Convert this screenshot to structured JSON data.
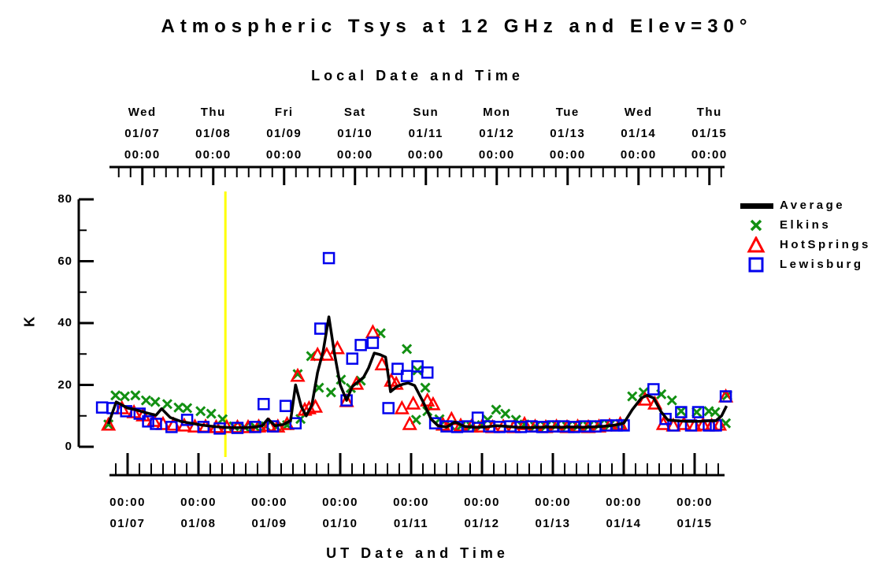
{
  "chart_data": {
    "type": "scatter",
    "title": "Atmospheric Tsys at 12 GHz and Elev=30°",
    "ylabel": "K",
    "y_axis": {
      "range": [
        0,
        80
      ],
      "ticks": [
        0,
        20,
        40,
        60,
        80
      ],
      "minor_ticks": [
        10,
        30,
        50,
        70
      ]
    },
    "time_unit": "days since 01/07 00:00 UT",
    "t_range": [
      -0.4,
      8.5
    ],
    "top_axis": {
      "label": "Local Date and Time",
      "offset_hours": 5,
      "minor_tick_hours": 4,
      "ticks": [
        {
          "day": "Wed",
          "date": "01/07",
          "time": "00:00"
        },
        {
          "day": "Thu",
          "date": "01/08",
          "time": "00:00"
        },
        {
          "day": "Fri",
          "date": "01/09",
          "time": "00:00"
        },
        {
          "day": "Sat",
          "date": "01/10",
          "time": "00:00"
        },
        {
          "day": "Sun",
          "date": "01/11",
          "time": "00:00"
        },
        {
          "day": "Mon",
          "date": "01/12",
          "time": "00:00"
        },
        {
          "day": "Tue",
          "date": "01/13",
          "time": "00:00"
        },
        {
          "day": "Wed",
          "date": "01/14",
          "time": "00:00"
        },
        {
          "day": "Thu",
          "date": "01/15",
          "time": "00:00"
        }
      ]
    },
    "bottom_axis": {
      "label": "UT Date and Time",
      "minor_tick_hours": 4,
      "ticks": [
        {
          "time": "00:00",
          "date": "01/07"
        },
        {
          "time": "00:00",
          "date": "01/08"
        },
        {
          "time": "00:00",
          "date": "01/09"
        },
        {
          "time": "00:00",
          "date": "01/10"
        },
        {
          "time": "00:00",
          "date": "01/11"
        },
        {
          "time": "00:00",
          "date": "01/12"
        },
        {
          "time": "00:00",
          "date": "01/13"
        },
        {
          "time": "00:00",
          "date": "01/14"
        },
        {
          "time": "00:00",
          "date": "01/15"
        }
      ]
    },
    "highlight_line": {
      "color": "#FFFF00",
      "t_days": 1.38
    },
    "legend_position": "right-top",
    "series": [
      {
        "name": "Average",
        "type": "line",
        "color": "#000000",
        "points": [
          [
            -0.27,
            7.4
          ],
          [
            -0.16,
            14.5
          ],
          [
            0.0,
            12.5
          ],
          [
            0.11,
            12
          ],
          [
            0.26,
            11
          ],
          [
            0.4,
            10.2
          ],
          [
            0.48,
            12.3
          ],
          [
            0.6,
            9.5
          ],
          [
            0.75,
            8.2
          ],
          [
            0.9,
            7.6
          ],
          [
            1.05,
            7
          ],
          [
            1.2,
            6.6
          ],
          [
            1.35,
            6.3
          ],
          [
            1.5,
            6.2
          ],
          [
            1.65,
            6.2
          ],
          [
            1.8,
            6.4
          ],
          [
            1.9,
            6.8
          ],
          [
            1.98,
            9
          ],
          [
            2.08,
            6.8
          ],
          [
            2.2,
            7.2
          ],
          [
            2.3,
            8.5
          ],
          [
            2.37,
            20
          ],
          [
            2.45,
            13
          ],
          [
            2.52,
            10
          ],
          [
            2.6,
            13.5
          ],
          [
            2.68,
            24
          ],
          [
            2.76,
            31
          ],
          [
            2.84,
            42
          ],
          [
            2.92,
            30
          ],
          [
            3.0,
            20
          ],
          [
            3.09,
            15
          ],
          [
            3.17,
            19.5
          ],
          [
            3.25,
            21
          ],
          [
            3.33,
            22.5
          ],
          [
            3.4,
            25.5
          ],
          [
            3.48,
            30.3
          ],
          [
            3.56,
            29.8
          ],
          [
            3.64,
            29
          ],
          [
            3.71,
            17.8
          ],
          [
            3.8,
            19.5
          ],
          [
            3.88,
            20.2
          ],
          [
            3.96,
            20.6
          ],
          [
            4.05,
            19.8
          ],
          [
            4.17,
            14.5
          ],
          [
            4.28,
            9
          ],
          [
            4.38,
            6.8
          ],
          [
            4.5,
            6.4
          ],
          [
            4.62,
            8
          ],
          [
            4.75,
            6.6
          ],
          [
            4.9,
            6.3
          ],
          [
            5.05,
            6.4
          ],
          [
            5.2,
            6.8
          ],
          [
            5.35,
            6.6
          ],
          [
            5.5,
            6.3
          ],
          [
            5.65,
            6.2
          ],
          [
            5.8,
            6.3
          ],
          [
            5.95,
            6.4
          ],
          [
            6.1,
            6.3
          ],
          [
            6.25,
            6.4
          ],
          [
            6.4,
            6.3
          ],
          [
            6.55,
            6.4
          ],
          [
            6.7,
            6.6
          ],
          [
            6.85,
            6.9
          ],
          [
            7.0,
            7.6
          ],
          [
            7.12,
            12
          ],
          [
            7.25,
            15.8
          ],
          [
            7.33,
            16.6
          ],
          [
            7.42,
            15.8
          ],
          [
            7.53,
            11.2
          ],
          [
            7.62,
            8.7
          ],
          [
            7.75,
            8.4
          ],
          [
            7.9,
            8.2
          ],
          [
            8.05,
            8.2
          ],
          [
            8.2,
            8.4
          ],
          [
            8.3,
            8.4
          ],
          [
            8.38,
            10
          ],
          [
            8.45,
            13.2
          ]
        ]
      },
      {
        "name": "Elkins",
        "type": "scatter",
        "marker": "x",
        "color": "#129012",
        "points": [
          [
            -0.27,
            7.2
          ],
          [
            -0.17,
            16.6
          ],
          [
            -0.04,
            16.3
          ],
          [
            0.11,
            16.6
          ],
          [
            0.26,
            15
          ],
          [
            0.39,
            14.5
          ],
          [
            0.56,
            13.8
          ],
          [
            0.72,
            12.7
          ],
          [
            0.84,
            12.5
          ],
          [
            1.03,
            11.5
          ],
          [
            1.18,
            10.7
          ],
          [
            1.34,
            8.9
          ],
          [
            1.5,
            6.6
          ],
          [
            1.65,
            6.4
          ],
          [
            1.8,
            6.4
          ],
          [
            1.95,
            6.6
          ],
          [
            2.1,
            6.4
          ],
          [
            2.25,
            7
          ],
          [
            2.4,
            23.5
          ],
          [
            2.44,
            9
          ],
          [
            2.59,
            29.3
          ],
          [
            2.7,
            19.1
          ],
          [
            2.87,
            17.6
          ],
          [
            3.01,
            21.7
          ],
          [
            3.15,
            19
          ],
          [
            3.29,
            21.4
          ],
          [
            3.57,
            36.7
          ],
          [
            3.94,
            31.6
          ],
          [
            4.07,
            8.7
          ],
          [
            4.09,
            24.7
          ],
          [
            4.2,
            19.1
          ],
          [
            4.23,
            11.5
          ],
          [
            4.4,
            8.9
          ],
          [
            4.55,
            7
          ],
          [
            4.7,
            6.6
          ],
          [
            4.85,
            6.6
          ],
          [
            5.0,
            7
          ],
          [
            5.08,
            8.7
          ],
          [
            5.2,
            12
          ],
          [
            5.33,
            10.7
          ],
          [
            5.48,
            8.7
          ],
          [
            5.6,
            7.2
          ],
          [
            5.75,
            6.6
          ],
          [
            5.9,
            6.6
          ],
          [
            6.05,
            7
          ],
          [
            6.2,
            6.6
          ],
          [
            6.35,
            6.6
          ],
          [
            6.5,
            6.6
          ],
          [
            6.65,
            7
          ],
          [
            6.8,
            7
          ],
          [
            6.95,
            7.4
          ],
          [
            7.12,
            16.3
          ],
          [
            7.28,
            17.6
          ],
          [
            7.53,
            17
          ],
          [
            7.68,
            15
          ],
          [
            7.81,
            11.5
          ],
          [
            8.03,
            11.2
          ],
          [
            8.2,
            11.5
          ],
          [
            8.29,
            11.2
          ],
          [
            8.44,
            7.6
          ],
          [
            8.46,
            16.6
          ]
        ]
      },
      {
        "name": "HotSprings",
        "type": "scatter",
        "marker": "triangle",
        "color": "#FF0000",
        "points": [
          [
            -0.27,
            7.2
          ],
          [
            -0.08,
            12.5
          ],
          [
            0.09,
            11.2
          ],
          [
            0.22,
            10.2
          ],
          [
            0.37,
            8.4
          ],
          [
            0.5,
            7.4
          ],
          [
            0.65,
            7.2
          ],
          [
            0.8,
            6.9
          ],
          [
            0.95,
            6.6
          ],
          [
            1.1,
            6.6
          ],
          [
            1.25,
            6.4
          ],
          [
            1.4,
            6.4
          ],
          [
            1.55,
            6.4
          ],
          [
            1.7,
            6.4
          ],
          [
            1.85,
            6.6
          ],
          [
            2.0,
            6.9
          ],
          [
            2.12,
            6.6
          ],
          [
            2.25,
            7.4
          ],
          [
            2.4,
            23
          ],
          [
            2.5,
            12
          ],
          [
            2.56,
            12.5
          ],
          [
            2.65,
            13
          ],
          [
            2.68,
            29.8
          ],
          [
            2.81,
            29.8
          ],
          [
            2.96,
            31.9
          ],
          [
            3.09,
            14.8
          ],
          [
            3.23,
            20.4
          ],
          [
            3.46,
            37.1
          ],
          [
            3.59,
            26.7
          ],
          [
            3.72,
            21.4
          ],
          [
            3.79,
            20.4
          ],
          [
            3.87,
            12.5
          ],
          [
            3.98,
            7.4
          ],
          [
            4.03,
            14
          ],
          [
            4.23,
            15
          ],
          [
            4.31,
            13.8
          ],
          [
            4.45,
            7.2
          ],
          [
            4.57,
            9
          ],
          [
            4.7,
            6.9
          ],
          [
            4.85,
            6.6
          ],
          [
            5.0,
            6.6
          ],
          [
            5.15,
            6.4
          ],
          [
            5.3,
            6.6
          ],
          [
            5.45,
            6.4
          ],
          [
            5.6,
            7.4
          ],
          [
            5.75,
            6.6
          ],
          [
            5.9,
            6.4
          ],
          [
            6.05,
            6.6
          ],
          [
            6.2,
            6.4
          ],
          [
            6.35,
            6.6
          ],
          [
            6.5,
            6.4
          ],
          [
            6.65,
            6.6
          ],
          [
            6.8,
            6.9
          ],
          [
            6.95,
            7.4
          ],
          [
            7.3,
            15.3
          ],
          [
            7.44,
            14
          ],
          [
            7.56,
            7.4
          ],
          [
            7.7,
            6.9
          ],
          [
            7.85,
            7.4
          ],
          [
            8.0,
            6.9
          ],
          [
            8.12,
            7.2
          ],
          [
            8.24,
            6.9
          ],
          [
            8.35,
            7.2
          ],
          [
            8.44,
            16.3
          ]
        ]
      },
      {
        "name": "Lewisburg",
        "type": "scatter",
        "marker": "square",
        "color": "#0000EE",
        "points": [
          [
            -0.36,
            12.7
          ],
          [
            -0.21,
            12.5
          ],
          [
            -0.02,
            11.5
          ],
          [
            0.17,
            10.7
          ],
          [
            0.29,
            8.2
          ],
          [
            0.4,
            7.4
          ],
          [
            0.62,
            6.4
          ],
          [
            0.84,
            8.7
          ],
          [
            1.07,
            6.4
          ],
          [
            1.3,
            5.9
          ],
          [
            1.55,
            6.1
          ],
          [
            1.8,
            6.4
          ],
          [
            1.92,
            13.8
          ],
          [
            2.05,
            6.6
          ],
          [
            2.23,
            13.2
          ],
          [
            2.37,
            7.6
          ],
          [
            2.72,
            38.2
          ],
          [
            2.84,
            61
          ],
          [
            3.09,
            15
          ],
          [
            3.17,
            28.5
          ],
          [
            3.29,
            32.9
          ],
          [
            3.46,
            33.6
          ],
          [
            3.68,
            12.5
          ],
          [
            3.81,
            25.2
          ],
          [
            3.94,
            22.9
          ],
          [
            4.09,
            26
          ],
          [
            4.23,
            24
          ],
          [
            4.34,
            7.6
          ],
          [
            4.5,
            6.6
          ],
          [
            4.65,
            6.4
          ],
          [
            4.8,
            6.6
          ],
          [
            4.94,
            9.4
          ],
          [
            5.1,
            6.6
          ],
          [
            5.25,
            6.4
          ],
          [
            5.4,
            6.6
          ],
          [
            5.55,
            6.4
          ],
          [
            5.7,
            6.6
          ],
          [
            5.85,
            6.4
          ],
          [
            6.0,
            6.6
          ],
          [
            6.15,
            6.6
          ],
          [
            6.3,
            6.4
          ],
          [
            6.45,
            6.6
          ],
          [
            6.6,
            6.6
          ],
          [
            6.75,
            6.9
          ],
          [
            6.9,
            6.9
          ],
          [
            7.0,
            6.9
          ],
          [
            7.42,
            18.6
          ],
          [
            7.59,
            9
          ],
          [
            7.7,
            6.9
          ],
          [
            7.81,
            11.2
          ],
          [
            7.95,
            6.9
          ],
          [
            8.05,
            11.2
          ],
          [
            8.2,
            6.9
          ],
          [
            8.3,
            6.9
          ],
          [
            8.44,
            16.3
          ]
        ]
      }
    ]
  }
}
